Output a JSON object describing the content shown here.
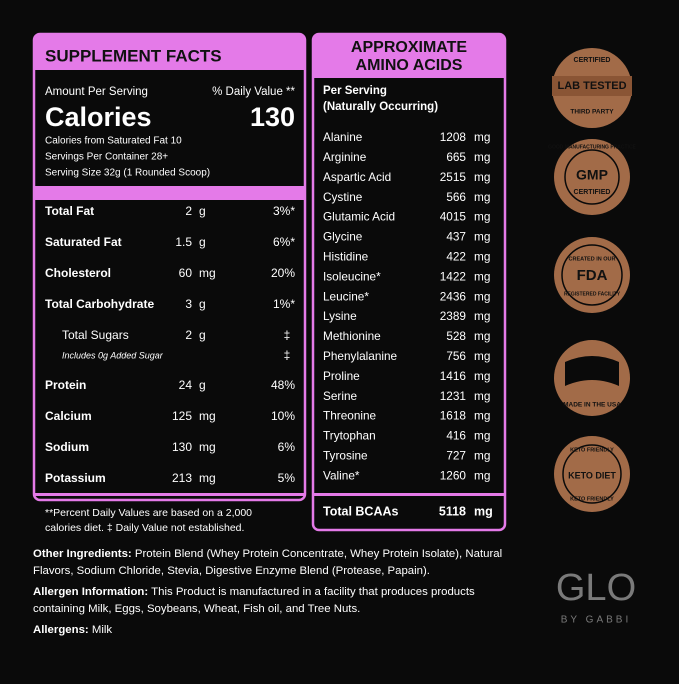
{
  "supplement_facts": {
    "title": "SUPPLEMENT FACTS",
    "amount_per_serving": "Amount Per Serving",
    "daily_value_header": "% Daily Value **",
    "calories_label": "Calories",
    "calories_value": 130,
    "info_lines": [
      "Calories from Saturated Fat 10",
      "Servings Per Container 28+",
      "Serving Size 32g (1 Rounded Scoop)"
    ],
    "rows": [
      {
        "name": "Total Fat",
        "amount": 2,
        "unit": "g",
        "dv": "3%*"
      },
      {
        "name": "Saturated Fat",
        "amount": 1.5,
        "unit": "g",
        "dv": "6%*"
      },
      {
        "name": "Cholesterol",
        "amount": 60,
        "unit": "mg",
        "dv": "20%"
      },
      {
        "name": "Total Carbohydrate",
        "amount": 3,
        "unit": "g",
        "dv": "1%*",
        "sub_rows": [
          {
            "name": "Total Sugars",
            "amount": 2,
            "unit": "g",
            "dv": "‡"
          },
          {
            "name": "Includes 0g Added Sugar",
            "dv": "‡"
          }
        ]
      },
      {
        "name": "Protein",
        "amount": 24,
        "unit": "g",
        "dv": "48%"
      },
      {
        "name": "Calcium",
        "amount": 125,
        "unit": "mg",
        "dv": "10%"
      },
      {
        "name": "Sodium",
        "amount": 130,
        "unit": "mg",
        "dv": "6%"
      },
      {
        "name": "Potassium",
        "amount": 213,
        "unit": "mg",
        "dv": "5%"
      }
    ],
    "footnote_lines": [
      "**Percent Daily Values are based on a 2,000",
      "calories diet. ‡ Daily Value not established."
    ]
  },
  "amino_acids": {
    "title_lines": [
      "APPROXIMATE",
      "AMINO ACIDS"
    ],
    "subtitle_lines": [
      "Per Serving",
      "(Naturally Occurring)"
    ],
    "rows": [
      {
        "name": "Alanine",
        "amount": 1208,
        "unit": "mg"
      },
      {
        "name": "Arginine",
        "amount": 665,
        "unit": "mg"
      },
      {
        "name": "Aspartic Acid",
        "amount": 2515,
        "unit": "mg"
      },
      {
        "name": "Cystine",
        "amount": 566,
        "unit": "mg"
      },
      {
        "name": "Glutamic Acid",
        "amount": 4015,
        "unit": "mg"
      },
      {
        "name": "Glycine",
        "amount": 437,
        "unit": "mg"
      },
      {
        "name": "Histidine",
        "amount": 422,
        "unit": "mg"
      },
      {
        "name": "Isoleucine*",
        "amount": 1422,
        "unit": "mg"
      },
      {
        "name": "Leucine*",
        "amount": 2436,
        "unit": "mg"
      },
      {
        "name": "Lysine",
        "amount": 2389,
        "unit": "mg"
      },
      {
        "name": "Methionine",
        "amount": 528,
        "unit": "mg"
      },
      {
        "name": "Phenylalanine",
        "amount": 756,
        "unit": "mg"
      },
      {
        "name": "Proline",
        "amount": 1416,
        "unit": "mg"
      },
      {
        "name": "Serine",
        "amount": 1231,
        "unit": "mg"
      },
      {
        "name": "Threonine",
        "amount": 1618,
        "unit": "mg"
      },
      {
        "name": "Trytophan",
        "amount": 416,
        "unit": "mg"
      },
      {
        "name": "Tyrosine",
        "amount": 727,
        "unit": "mg"
      },
      {
        "name": "Valine*",
        "amount": 1260,
        "unit": "mg"
      }
    ],
    "total": {
      "name": "Total BCAAs",
      "amount": 5118,
      "unit": "mg"
    }
  },
  "ingredients": {
    "other_label": "Other Ingredients:",
    "other_text": "Protein Blend (Whey Protein Concentrate, Whey Protein Isolate), Natural Flavors, Sodium Chloride, Stevia, Digestive Enzyme Blend (Protease, Papain).",
    "allergen_info_label": "Allergen Information:",
    "allergen_info_text": "This Product is manufactured in a facility that produces products containing Milk, Eggs, Soybeans, Wheat, Fish oil, and Tree Nuts.",
    "allergens_label": "Allergens:",
    "allergens_text": "Milk"
  },
  "badges": {
    "lab_tested": {
      "top": "CERTIFIED",
      "main": "LAB TESTED",
      "bottom": "THIRD PARTY"
    },
    "gmp": {
      "top": "GOOD MANUFACTURING PRACTICE",
      "main": "GMP",
      "bottom": "CERTIFIED"
    },
    "fda": {
      "top": "CREATED IN OUR",
      "main": "FDA",
      "bottom": "REGISTERED FACILITY"
    },
    "usa": {
      "main": "MADE IN THE USA"
    },
    "keto": {
      "top": "KETO FRIENDLY",
      "main": "KETO DIET",
      "bottom": "KETO FRIENDLY"
    }
  },
  "logo": {
    "main": "GLO",
    "sub": "BY GABBI"
  }
}
